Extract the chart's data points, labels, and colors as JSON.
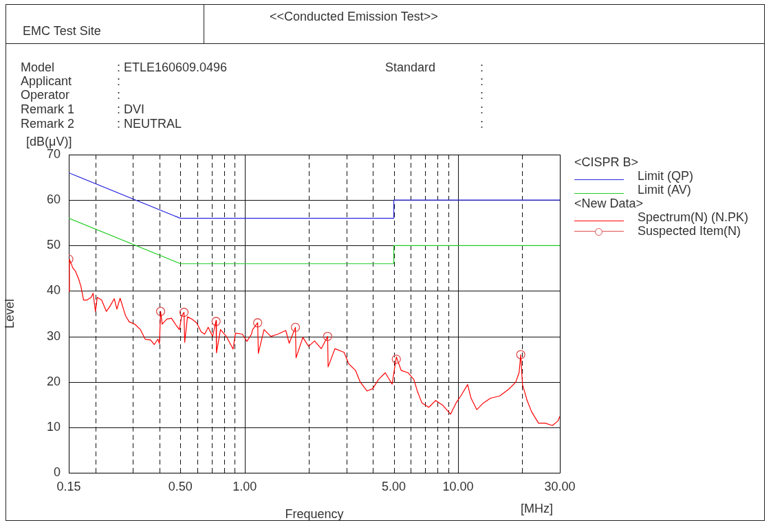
{
  "chart_data": {
    "type": "line",
    "title": "<<Conducted Emission Test>>",
    "xlabel": "Frequency",
    "ylabel": "Level",
    "annotations": [
      "EMC Test Site",
      "Model : ETLE160609.0496",
      "Applicant :",
      "Operator :",
      "Remark 1 : DVI",
      "Remark 2 : NEUTRAL",
      "Standard :",
      ":",
      ":",
      ":",
      ":",
      "[dB(μV)]",
      "[MHz]",
      "<CISPR B>",
      "<New Data>"
    ],
    "log": "x",
    "grid": true,
    "legend": "right",
    "xlim": [
      0.15,
      30
    ],
    "xticks": [
      {
        "value": 0.15,
        "label": "0.15"
      },
      {
        "value": 0.2,
        "label": null
      },
      {
        "value": 0.3,
        "label": null
      },
      {
        "value": 0.4,
        "label": null
      },
      {
        "value": 0.5,
        "label": "0.50"
      },
      {
        "value": 0.6,
        "label": null
      },
      {
        "value": 0.7,
        "label": null
      },
      {
        "value": 0.8,
        "label": null
      },
      {
        "value": 0.9,
        "label": null
      },
      {
        "value": 1,
        "label": "1.00"
      },
      {
        "value": 2,
        "label": null
      },
      {
        "value": 3,
        "label": null
      },
      {
        "value": 4,
        "label": null
      },
      {
        "value": 5,
        "label": "5.00"
      },
      {
        "value": 6,
        "label": null
      },
      {
        "value": 7,
        "label": null
      },
      {
        "value": 8,
        "label": null
      },
      {
        "value": 9,
        "label": null
      },
      {
        "value": 10,
        "label": "10.00"
      },
      {
        "value": 20,
        "label": null
      },
      {
        "value": 30,
        "label": "30.00"
      }
    ],
    "ylim": [
      0,
      70
    ],
    "yticks": [
      0,
      10,
      20,
      30,
      40,
      50,
      60,
      70
    ],
    "series": [
      {
        "name": "Limit (QP)",
        "type": "line",
        "color": "#2828e0",
        "x": [
          0.15,
          0.5,
          5,
          5,
          30
        ],
        "values": [
          66,
          56,
          56,
          60,
          60
        ]
      },
      {
        "name": "Limit (AV)",
        "type": "line",
        "color": "#22cc22",
        "x": [
          0.15,
          0.5,
          5,
          5,
          30
        ],
        "values": [
          56,
          46,
          46,
          50,
          50
        ]
      },
      {
        "name": "Spectrum(N) (N.PK)",
        "type": "line",
        "color": "#ff0000",
        "x": [
          0.15,
          0.151,
          0.157,
          0.161,
          0.167,
          0.171,
          0.176,
          0.182,
          0.191,
          0.195,
          0.2,
          0.204,
          0.214,
          0.225,
          0.233,
          0.245,
          0.252,
          0.261,
          0.277,
          0.288,
          0.306,
          0.325,
          0.342,
          0.363,
          0.377,
          0.392,
          0.399,
          0.404,
          0.411,
          0.432,
          0.454,
          0.477,
          0.495,
          0.507,
          0.52,
          0.524,
          0.54,
          0.567,
          0.596,
          0.626,
          0.65,
          0.675,
          0.708,
          0.735,
          0.738,
          0.771,
          0.821,
          0.883,
          0.906,
          0.976,
          1.025,
          1.077,
          1.09,
          1.151,
          1.16,
          1.233,
          1.328,
          1.43,
          1.559,
          1.618,
          1.73,
          1.742,
          1.875,
          1.995,
          2.124,
          2.287,
          2.449,
          2.462,
          2.65,
          2.925,
          3.073,
          3.311,
          3.478,
          3.743,
          3.984,
          4.236,
          4.56,
          4.911,
          5.14,
          5.42,
          5.837,
          6.209,
          6.443,
          6.77,
          7.291,
          7.852,
          8.455,
          9.226,
          9.799,
          10.3,
          11.09,
          11.51,
          12.24,
          13.18,
          14.19,
          15.67,
          17.3,
          18.62,
          19.32,
          19.67,
          20.05,
          21.08,
          22.13,
          23.84,
          25.66,
          27.67,
          29.38,
          30
        ],
        "values": [
          40,
          47,
          45,
          44.4,
          42.6,
          41,
          38,
          38,
          38.6,
          39.5,
          35.5,
          38.6,
          38,
          35.5,
          36.5,
          38.3,
          36,
          38.4,
          34.5,
          33.2,
          32.7,
          31.5,
          29.4,
          29.2,
          28.2,
          29.4,
          28.4,
          35.5,
          32.7,
          33.8,
          34,
          32.5,
          31.5,
          34.5,
          35.3,
          28.7,
          34.3,
          33.8,
          33,
          31,
          30.5,
          32,
          30,
          33.5,
          26.4,
          31.5,
          30,
          27.2,
          30.7,
          30.5,
          28.9,
          30.5,
          31.5,
          33,
          26.3,
          31.5,
          30,
          30.5,
          31.3,
          28.5,
          32,
          25.3,
          29.8,
          27.8,
          29,
          27.3,
          30,
          23.3,
          27.3,
          26.5,
          24,
          22.5,
          20,
          18,
          18.5,
          20.5,
          22,
          19.5,
          25.5,
          22.5,
          22,
          20.5,
          18,
          15.4,
          14.4,
          15.9,
          14.9,
          12.9,
          15.4,
          16.9,
          19.4,
          16.4,
          13.9,
          15.4,
          16.4,
          16.9,
          18.4,
          19.9,
          22,
          26,
          19.4,
          15.9,
          13.4,
          10.9,
          10.9,
          10.4,
          11.4,
          12.4
        ]
      },
      {
        "name": "Suspected Item(N)",
        "type": "scatter",
        "marker": "circle",
        "color": "#e05050",
        "x": [
          0.15,
          0.404,
          0.52,
          0.735,
          1.151,
          1.73,
          2.449,
          5.14,
          19.67
        ],
        "values": [
          47,
          35.5,
          35.3,
          33.3,
          33,
          32,
          30,
          25,
          26
        ]
      }
    ]
  }
}
